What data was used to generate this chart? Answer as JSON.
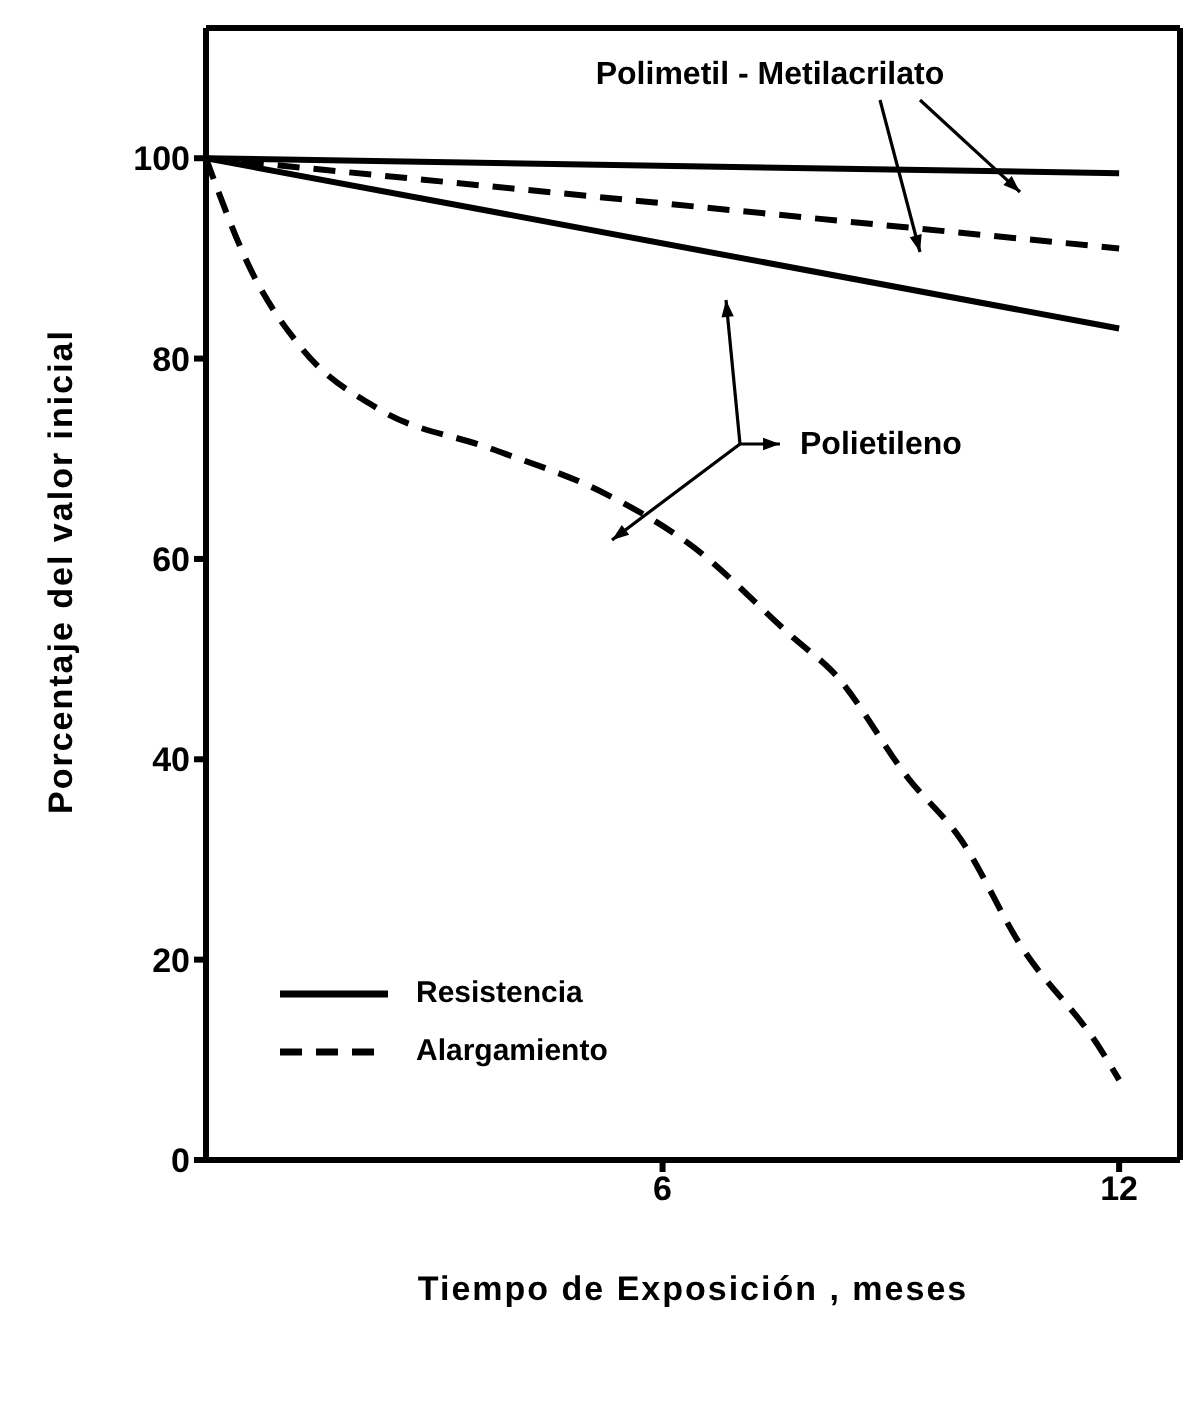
{
  "chart_data": {
    "type": "line",
    "xlabel": "Tiempo de Exposición , meses",
    "ylabel": "Porcentaje del valor inicial",
    "xlim": [
      0,
      12.8
    ],
    "xticks": [
      6,
      12
    ],
    "ylim": [
      0,
      113
    ],
    "yticks": [
      0,
      20,
      40,
      60,
      80,
      100
    ],
    "legend": "bottom left",
    "grid": false,
    "marker": "none",
    "annotations": [
      "Polimetil - Metilacrilato",
      "Polietileno"
    ],
    "series": [
      {
        "name": "Resistencia",
        "color": "#000000",
        "line_style": "solid",
        "x": [
          0,
          12
        ],
        "values": [
          100,
          83
        ]
      },
      {
        "name": "Alargamiento",
        "color": "#000000",
        "line_style": "dashed",
        "x": [
          0,
          0.58,
          1.26,
          2.26,
          3.75,
          5.25,
          6.35,
          7.74,
          8.24,
          9.24,
          9.92,
          10.7,
          11.76,
          12
        ],
        "values": [
          100,
          89,
          81,
          75,
          71,
          66.5,
          61.5,
          52,
          48.7,
          38,
          32,
          21.5,
          11,
          8
        ]
      },
      {
        "color": "#000000",
        "line_style": "solid",
        "x": [
          0,
          12
        ],
        "values": [
          100,
          98.5
        ]
      },
      {
        "color": "#000000",
        "line_style": "dashed",
        "x": [
          0,
          12
        ],
        "values": [
          100,
          91
        ]
      }
    ]
  }
}
